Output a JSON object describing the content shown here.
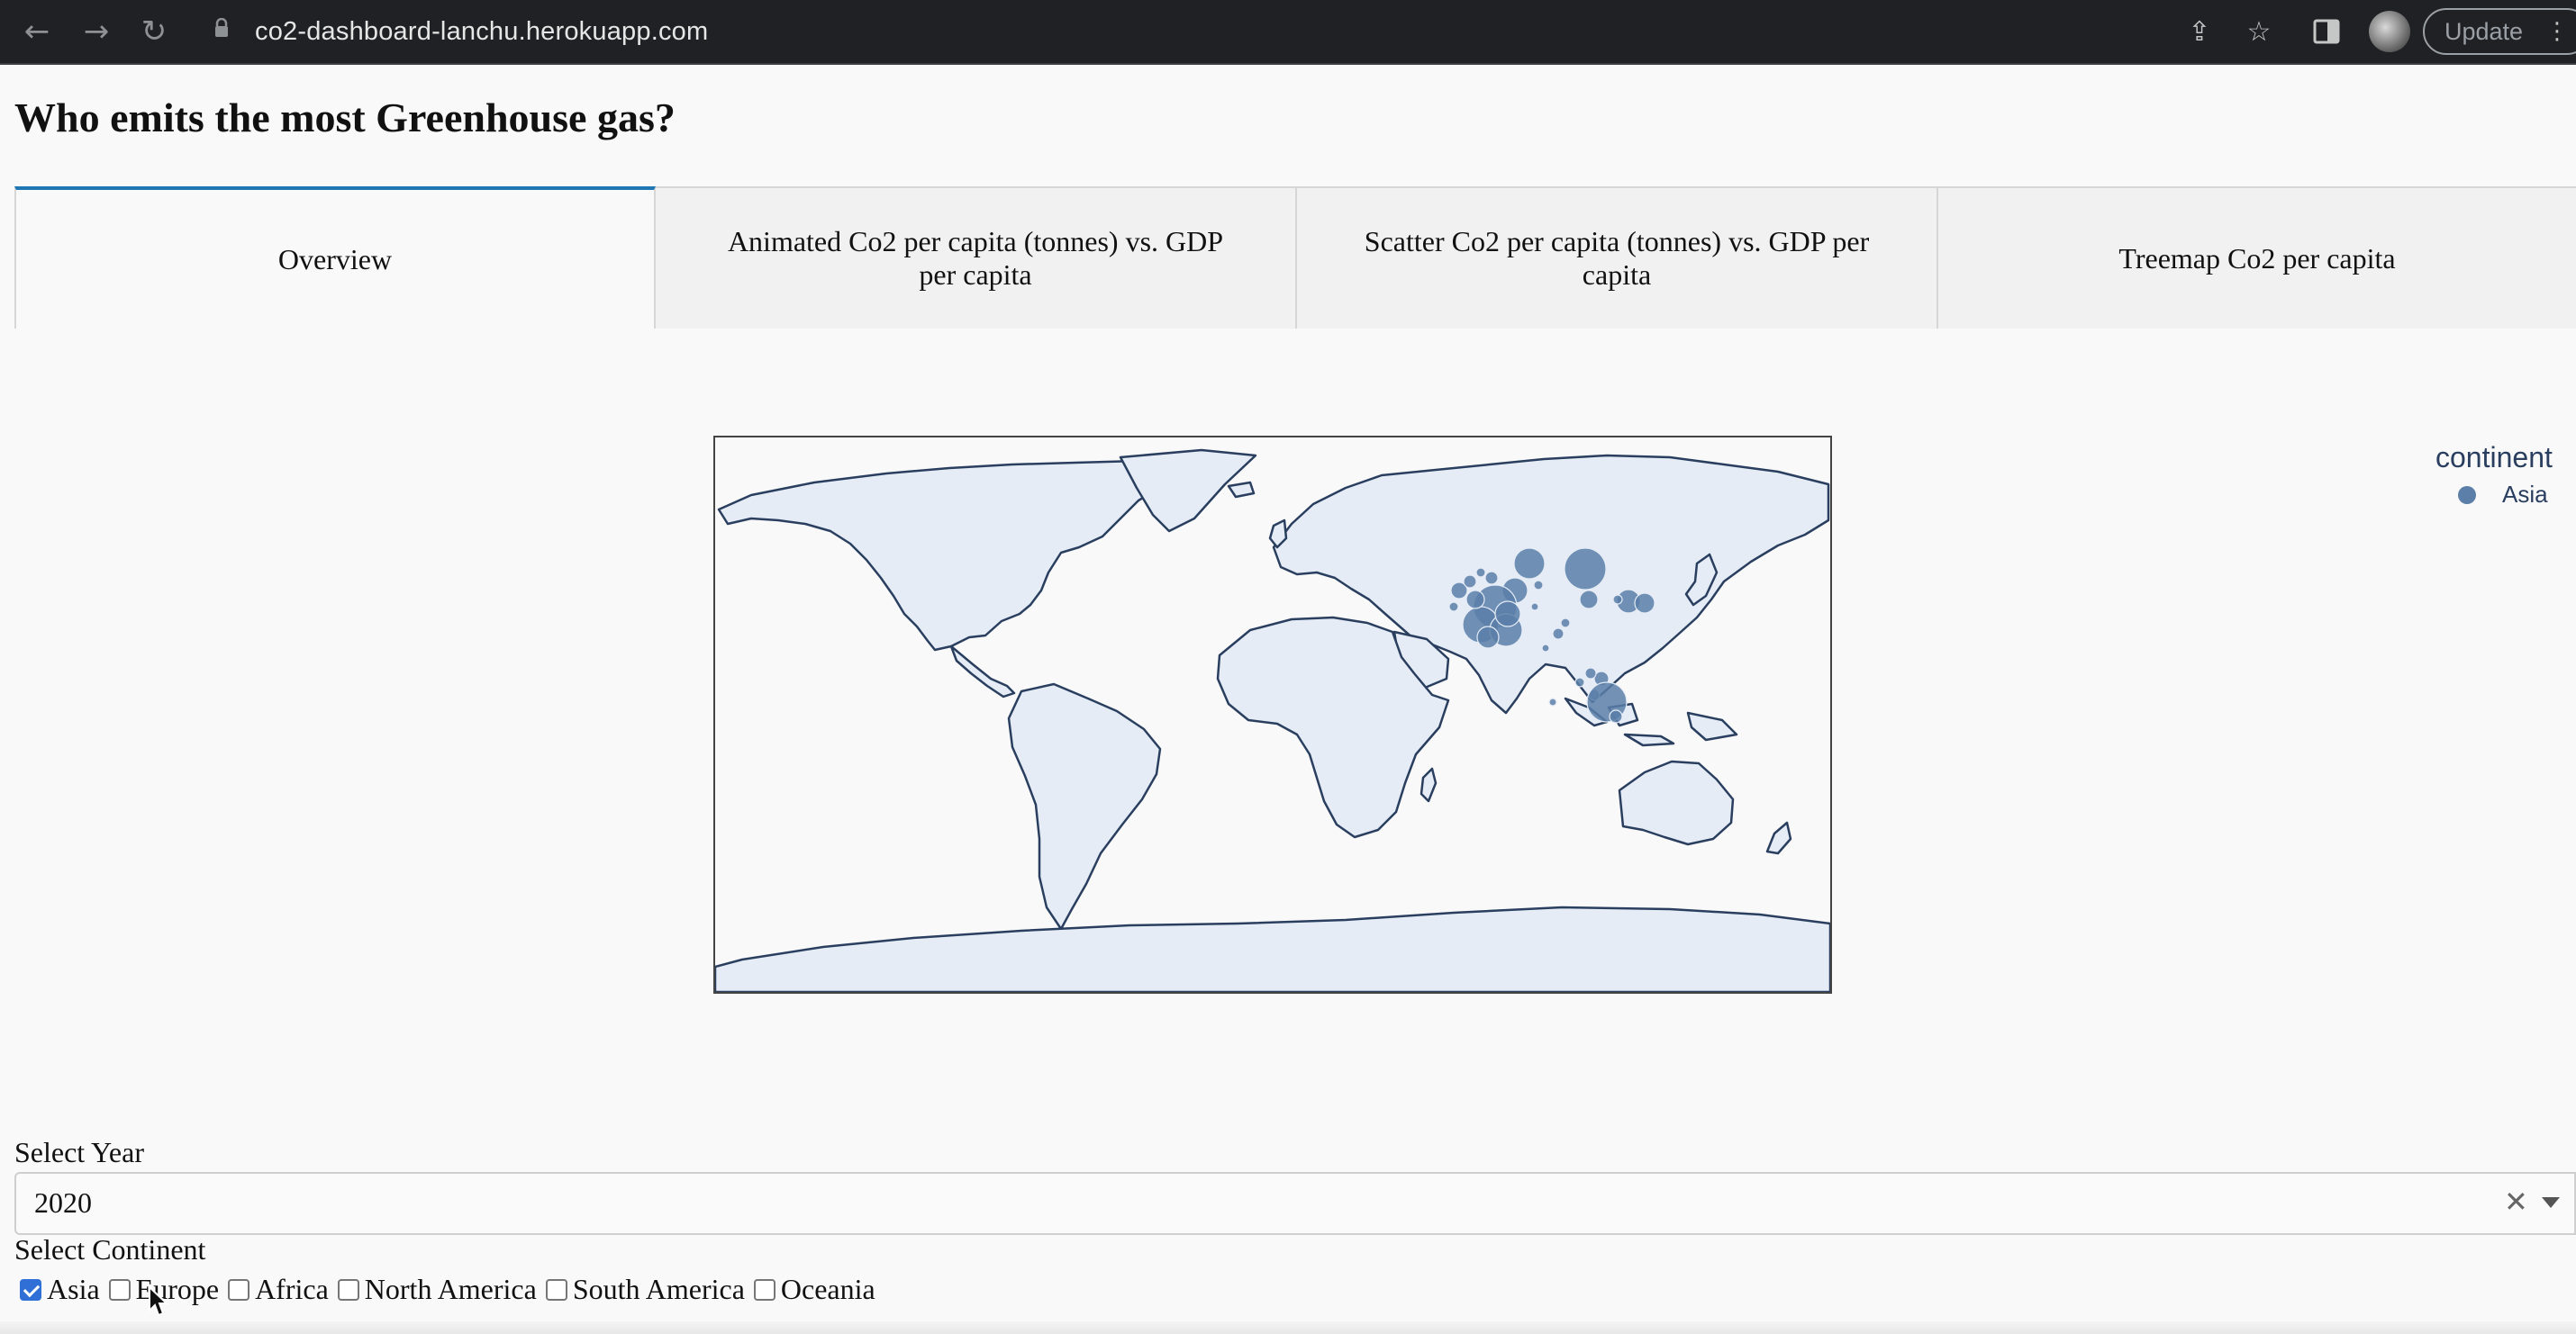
{
  "browser": {
    "url": "co2-dashboard-lanchu.herokuapp.com",
    "update_label": "Update"
  },
  "page": {
    "title": "Who emits the most Greenhouse gas?"
  },
  "tabs": [
    {
      "label": "Overview",
      "active": true
    },
    {
      "label": "Animated Co2 per capita (tonnes) vs. GDP per capita",
      "active": false
    },
    {
      "label": "Scatter Co2 per capita (tonnes) vs. GDP per capita",
      "active": false
    },
    {
      "label": "Treemap Co2 per capita",
      "active": false
    }
  ],
  "map": {
    "legend_title": "continent",
    "legend_items": [
      {
        "label": "Asia",
        "color": "#5b7fa8"
      }
    ],
    "land_color": "#e5ecf6",
    "coast_color": "#2a3f5f"
  },
  "controls": {
    "year_label": "Select Year",
    "year_value": "2020",
    "continent_label": "Select Continent",
    "continents": [
      {
        "label": "Asia",
        "checked": true
      },
      {
        "label": "Europe",
        "checked": false
      },
      {
        "label": "Africa",
        "checked": false
      },
      {
        "label": "North America",
        "checked": false
      },
      {
        "label": "South America",
        "checked": false
      },
      {
        "label": "Oceania",
        "checked": false
      }
    ]
  },
  "colors": {
    "accent": "#1f77b4",
    "bubble": "#5b7fa8"
  }
}
